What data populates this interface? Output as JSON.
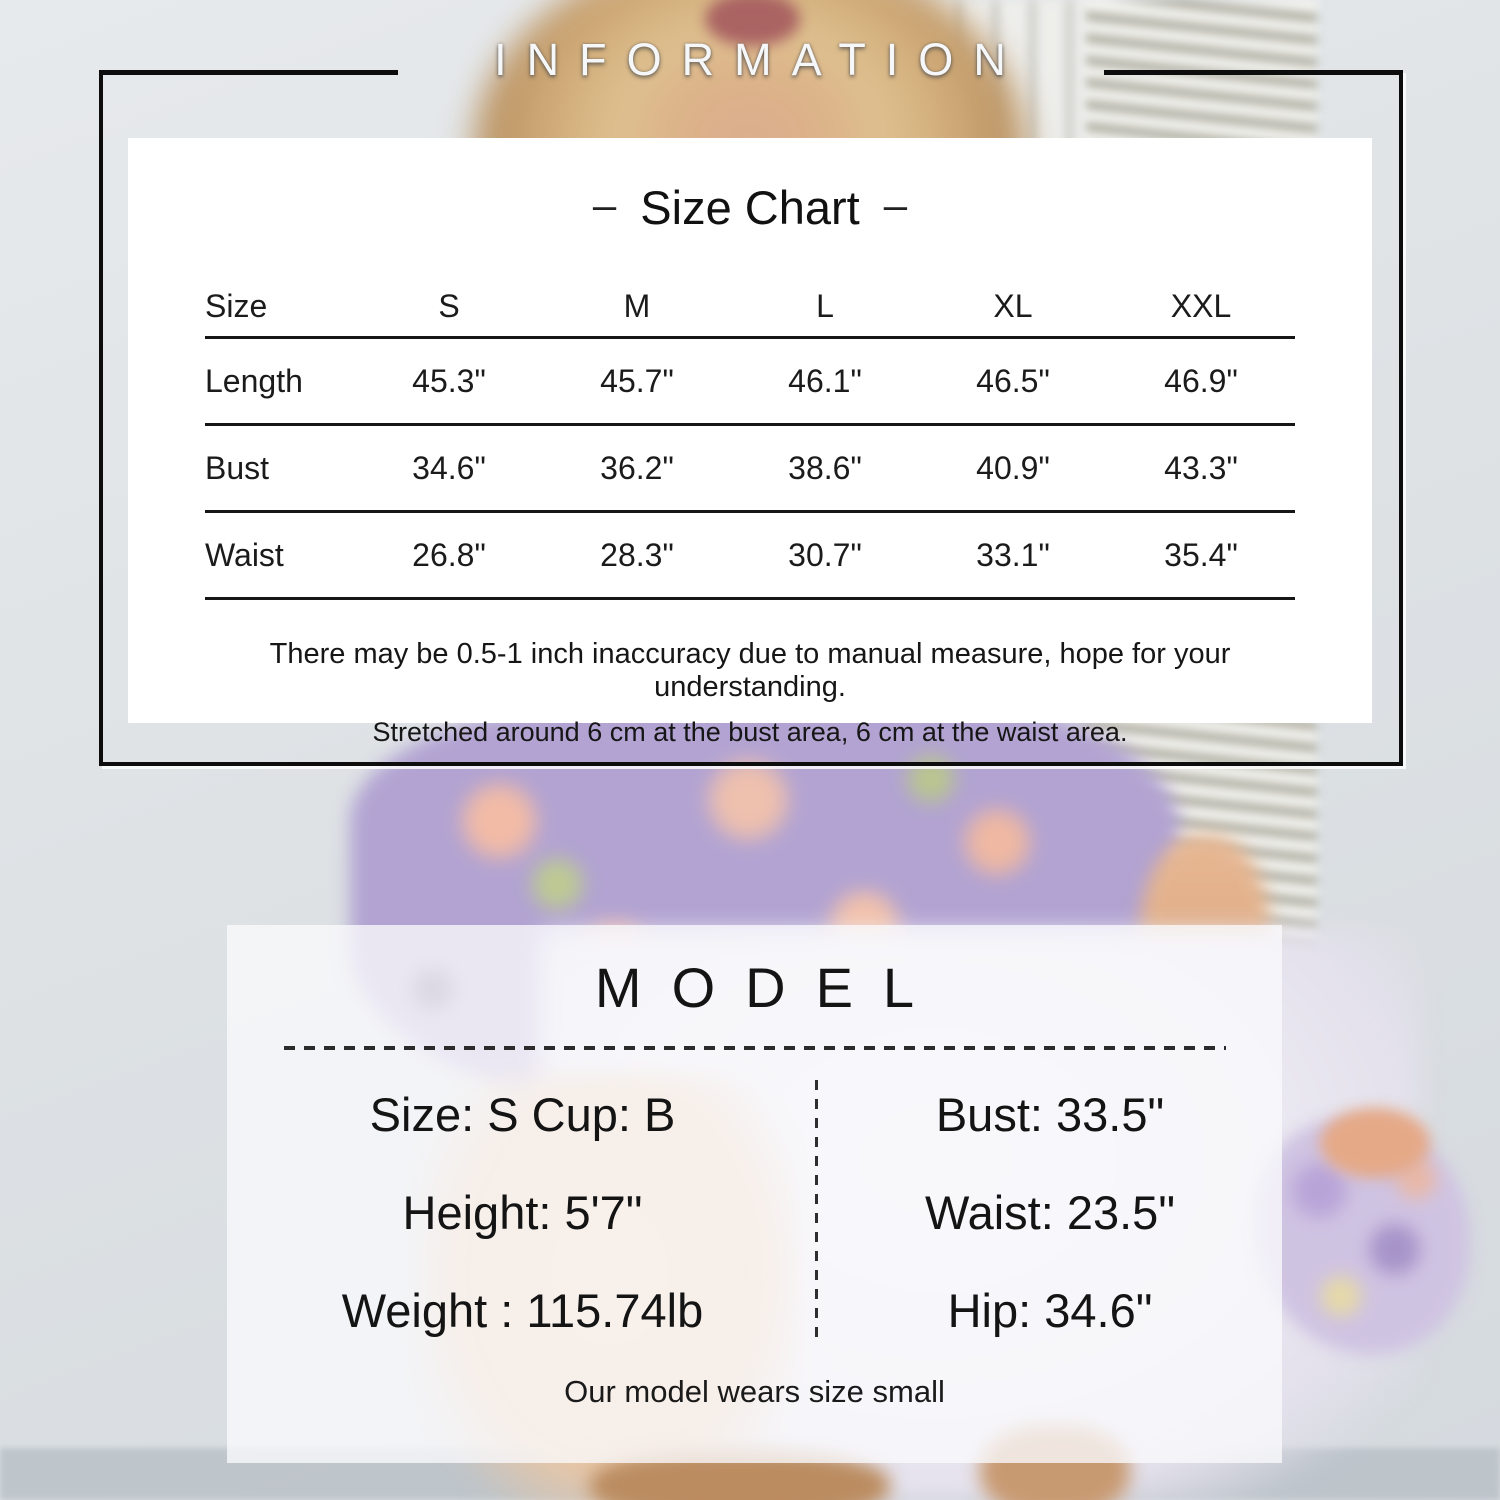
{
  "header": {
    "title": "INFORMATION"
  },
  "size_chart": {
    "title": "Size Chart",
    "dash": "–",
    "columns": [
      "Size",
      "S",
      "M",
      "L",
      "XL",
      "XXL"
    ],
    "rows": [
      {
        "label": "Length",
        "values": [
          "45.3\"",
          "45.7\"",
          "46.1\"",
          "46.5\"",
          "46.9\""
        ]
      },
      {
        "label": "Bust",
        "values": [
          "34.6\"",
          "36.2\"",
          "38.6\"",
          "40.9\"",
          "43.3\""
        ]
      },
      {
        "label": "Waist",
        "values": [
          "26.8\"",
          "28.3\"",
          "30.7\"",
          "33.1\"",
          "35.4\""
        ]
      }
    ],
    "note1": "There may be 0.5-1 inch inaccuracy due to manual measure, hope for your understanding.",
    "note2": "Stretched around 6 cm at the bust area, 6 cm at the waist area."
  },
  "model": {
    "title": "MODEL",
    "rows": [
      {
        "left": "Size: S Cup: B",
        "right": "Bust: 33.5\""
      },
      {
        "left": "Height: 5'7\"",
        "right": "Waist: 23.5\""
      },
      {
        "left": "Weight : 115.74lb",
        "right": "Hip: 34.6\""
      }
    ],
    "footnote": "Our model wears size small"
  },
  "colors": {
    "frame_border": "#0d0d0d",
    "text_primary": "#1a1a1a",
    "information_text": "#f6f7f8",
    "card_background": "#ffffff",
    "dress_lilac": "#b2a3d2"
  }
}
